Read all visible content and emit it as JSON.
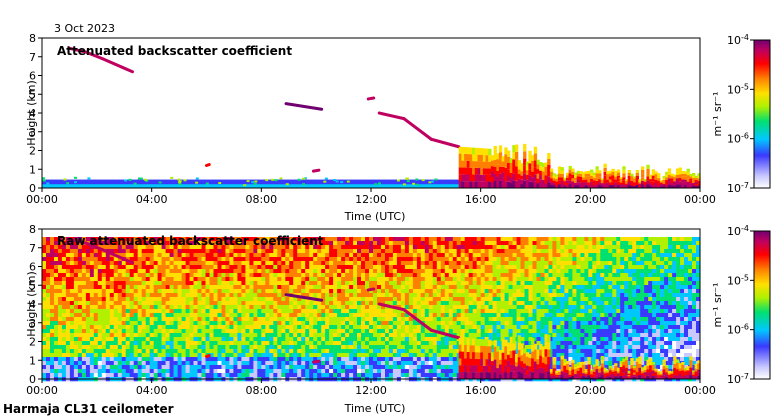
{
  "date_label": "3 Oct 2023",
  "footer": "Harmaja CL31 ceilometer",
  "colorbar": {
    "ticks": [
      "10^-7",
      "10^-6",
      "10^-5",
      "10^-4"
    ],
    "unit": "m⁻¹ sr⁻¹",
    "colors": [
      "#ffffff",
      "#c9c9ff",
      "#3a3aff",
      "#00c8ff",
      "#00e070",
      "#b0f000",
      "#ffe000",
      "#ff8000",
      "#ff0000",
      "#c00060",
      "#700070"
    ]
  },
  "chart_data": [
    {
      "type": "heatmap",
      "title": "Attenuated backscatter coefficient",
      "xlabel": "Time (UTC)",
      "ylabel": "Height (km)",
      "x_ticks": [
        "00:00",
        "04:00",
        "08:00",
        "12:00",
        "16:00",
        "20:00",
        "00:00"
      ],
      "y_ticks": [
        "0",
        "1",
        "2",
        "3",
        "4",
        "5",
        "6",
        "7",
        "8"
      ],
      "xlim_hours": [
        0,
        24
      ],
      "ylim_km": [
        0,
        8
      ],
      "color_scale": "log",
      "clim": [
        1e-07,
        0.0001
      ]
    },
    {
      "type": "heatmap",
      "title": "Raw attenuated backscatter coefficient",
      "xlabel": "Time (UTC)",
      "ylabel": "Height (km)",
      "x_ticks": [
        "00:00",
        "04:00",
        "08:00",
        "12:00",
        "16:00",
        "20:00",
        "00:00"
      ],
      "y_ticks": [
        "0",
        "1",
        "2",
        "3",
        "4",
        "5",
        "6",
        "7",
        "8"
      ],
      "xlim_hours": [
        0,
        24
      ],
      "ylim_km": [
        0,
        8
      ],
      "color_scale": "log",
      "clim": [
        1e-07,
        0.0001
      ]
    }
  ]
}
